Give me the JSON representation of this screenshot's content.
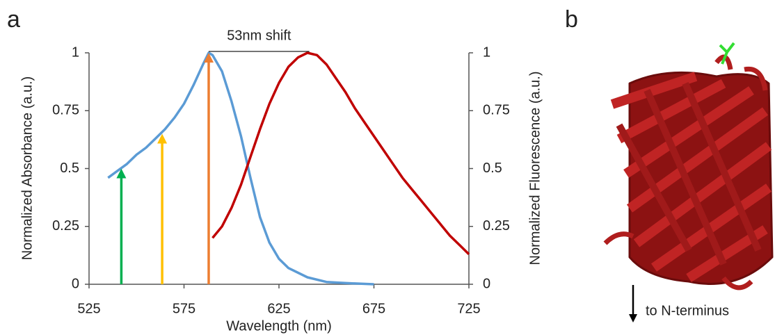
{
  "panel_labels": [
    "a",
    "b"
  ],
  "structure": {
    "caption": "to N-terminus"
  },
  "chart_data": {
    "type": "line",
    "x_label": "Wavelength (nm)",
    "y_label": "Normalized Absorbance (a.u.)",
    "y2_label": "Normalized Fluorescence (a.u.)",
    "xlim": [
      525,
      725
    ],
    "xticks": [
      525,
      575,
      625,
      675,
      725
    ],
    "ylim": [
      0,
      1
    ],
    "yticks": [
      0,
      0.25,
      0.5,
      0.75,
      1
    ],
    "y2lim": [
      0,
      1
    ],
    "y2ticks": [
      0,
      0.25,
      0.5,
      0.75,
      1
    ],
    "series": [
      {
        "name": "Absorbance",
        "color": "#5b9bd5",
        "x": [
          535,
          540,
          545,
          550,
          555,
          560,
          565,
          570,
          575,
          580,
          585,
          588,
          590,
          595,
          600,
          605,
          610,
          615,
          620,
          625,
          630,
          640,
          650,
          660,
          675
        ],
        "values": [
          0.46,
          0.49,
          0.52,
          0.56,
          0.59,
          0.63,
          0.67,
          0.72,
          0.78,
          0.86,
          0.95,
          1.0,
          0.99,
          0.92,
          0.79,
          0.64,
          0.46,
          0.29,
          0.18,
          0.11,
          0.07,
          0.03,
          0.01,
          0.005,
          0
        ]
      },
      {
        "name": "Fluorescence",
        "color": "#c00000",
        "axis": "y2",
        "x": [
          590,
          595,
          600,
          605,
          610,
          615,
          620,
          625,
          630,
          635,
          640,
          645,
          650,
          655,
          660,
          665,
          670,
          675,
          680,
          685,
          690,
          695,
          700,
          705,
          710,
          715,
          720,
          725
        ],
        "values": [
          0.2,
          0.25,
          0.33,
          0.43,
          0.55,
          0.67,
          0.78,
          0.87,
          0.94,
          0.98,
          1.0,
          0.99,
          0.95,
          0.89,
          0.83,
          0.76,
          0.7,
          0.64,
          0.58,
          0.52,
          0.46,
          0.41,
          0.36,
          0.31,
          0.26,
          0.21,
          0.17,
          0.13
        ]
      }
    ],
    "arrows": [
      {
        "x": 542,
        "y": 0.5,
        "color": "#00b050"
      },
      {
        "x": 563.5,
        "y": 0.65,
        "color": "#ffc000"
      },
      {
        "x": 588,
        "y": 1.0,
        "color": "#ed7d31"
      }
    ],
    "annotation": {
      "text": "53nm shift",
      "x": [
        588,
        641
      ],
      "y": 1
    }
  }
}
